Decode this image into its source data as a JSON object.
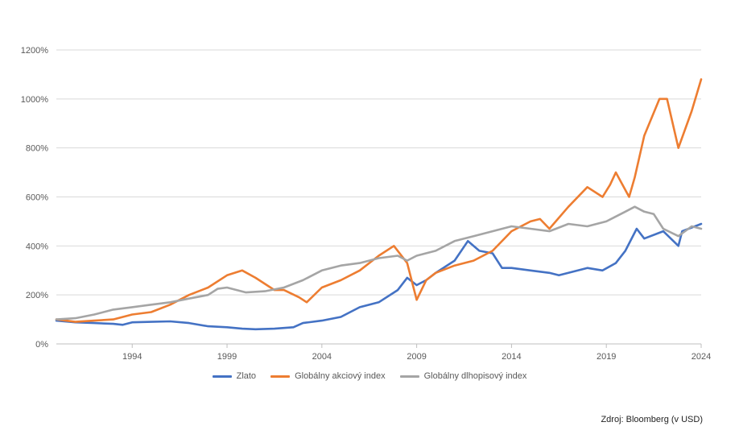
{
  "chart_data": {
    "type": "line",
    "title": "",
    "xlabel": "",
    "ylabel": "",
    "ylim": [
      0,
      1200
    ],
    "xlim": [
      1990.0,
      2024.0
    ],
    "y_ticks": [
      "0%",
      "200%",
      "400%",
      "600%",
      "800%",
      "1000%",
      "1200%"
    ],
    "x_ticks": [
      "1994",
      "1999",
      "2004",
      "2009",
      "2014",
      "2019",
      "2024"
    ],
    "grid": "horizontal",
    "legend_position": "bottom",
    "source": "Zdroj: Bloomberg (v USD)",
    "series": [
      {
        "name": "Zlato",
        "color": "#4472C4",
        "x": [
          1990.0,
          1991.0,
          1992.0,
          1993.0,
          1993.5,
          1994.0,
          1995.0,
          1996.0,
          1997.0,
          1998.0,
          1999.0,
          1999.8,
          2000.5,
          2001.5,
          2002.5,
          2003.0,
          2004.0,
          2005.0,
          2006.0,
          2007.0,
          2008.0,
          2008.5,
          2009.0,
          2009.5,
          2010.0,
          2011.0,
          2011.7,
          2012.3,
          2013.0,
          2013.5,
          2014.0,
          2015.0,
          2016.0,
          2016.5,
          2017.0,
          2018.0,
          2018.8,
          2019.5,
          2020.0,
          2020.6,
          2021.0,
          2022.0,
          2022.8,
          2023.0,
          2024.0
        ],
        "values": [
          95,
          88,
          85,
          82,
          78,
          88,
          90,
          92,
          85,
          72,
          68,
          62,
          60,
          62,
          68,
          85,
          95,
          110,
          150,
          170,
          220,
          270,
          240,
          260,
          290,
          340,
          420,
          380,
          370,
          310,
          310,
          300,
          290,
          280,
          290,
          310,
          300,
          330,
          380,
          470,
          430,
          460,
          400,
          460,
          490
        ]
      },
      {
        "name": "Globálny akciový index",
        "color": "#ED7D31",
        "x": [
          1990.0,
          1991.0,
          1992.0,
          1993.0,
          1994.0,
          1995.0,
          1996.0,
          1997.0,
          1998.0,
          1999.0,
          1999.8,
          2000.5,
          2001.5,
          2002.0,
          2002.8,
          2003.2,
          2004.0,
          2005.0,
          2006.0,
          2007.0,
          2007.8,
          2008.5,
          2009.0,
          2009.5,
          2010.0,
          2011.0,
          2012.0,
          2013.0,
          2014.0,
          2015.0,
          2015.5,
          2016.0,
          2017.0,
          2018.0,
          2018.8,
          2019.2,
          2019.5,
          2020.2,
          2020.5,
          2021.0,
          2021.8,
          2022.2,
          2022.8,
          2023.5,
          2024.0
        ],
        "values": [
          100,
          90,
          95,
          100,
          120,
          130,
          160,
          200,
          230,
          280,
          300,
          270,
          220,
          220,
          190,
          170,
          230,
          260,
          300,
          360,
          400,
          330,
          180,
          260,
          290,
          320,
          340,
          380,
          460,
          500,
          510,
          470,
          560,
          640,
          600,
          650,
          700,
          600,
          680,
          850,
          1000,
          1000,
          800,
          950,
          1080
        ]
      },
      {
        "name": "Globálny dlhopisový index",
        "color": "#A5A5A5",
        "x": [
          1990.0,
          1991.0,
          1992.0,
          1993.0,
          1994.0,
          1995.0,
          1996.0,
          1997.0,
          1998.0,
          1998.5,
          1999.0,
          2000.0,
          2001.0,
          2002.0,
          2003.0,
          2004.0,
          2005.0,
          2006.0,
          2007.0,
          2008.0,
          2008.5,
          2009.0,
          2010.0,
          2011.0,
          2012.0,
          2013.0,
          2014.0,
          2015.0,
          2016.0,
          2017.0,
          2018.0,
          2019.0,
          2020.0,
          2020.5,
          2021.0,
          2021.5,
          2022.0,
          2022.8,
          2023.5,
          2024.0
        ],
        "values": [
          100,
          105,
          120,
          140,
          150,
          160,
          170,
          185,
          200,
          225,
          230,
          210,
          215,
          230,
          260,
          300,
          320,
          330,
          350,
          360,
          340,
          360,
          380,
          420,
          440,
          460,
          480,
          470,
          460,
          490,
          480,
          500,
          540,
          560,
          540,
          530,
          470,
          440,
          480,
          470
        ]
      }
    ]
  }
}
